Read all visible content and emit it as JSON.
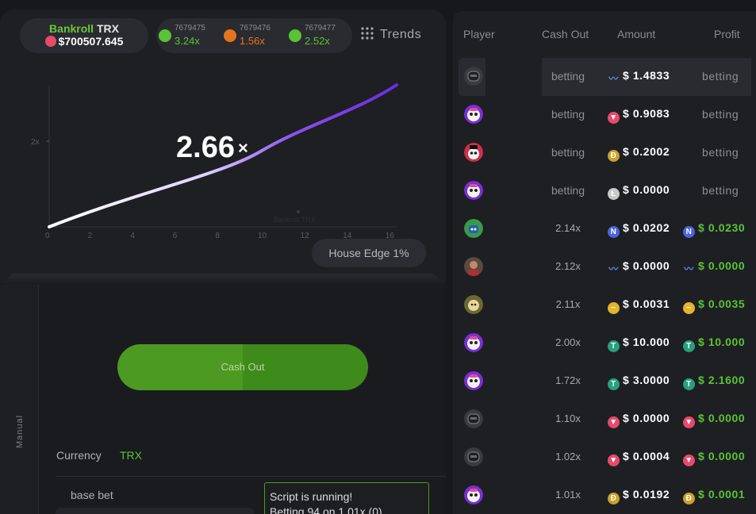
{
  "bankroll": {
    "label_prefix": "Bankroll",
    "label_currency": "TRX",
    "amount": "$700507.645"
  },
  "history": [
    {
      "id": "7679475",
      "multiplier": "3.24x",
      "color": "#59c434"
    },
    {
      "id": "7679476",
      "multiplier": "1.56x",
      "color": "#e8731e"
    },
    {
      "id": "7679477",
      "multiplier": "2.52x",
      "color": "#59c434"
    }
  ],
  "trends_label": "Trends",
  "chart": {
    "current_multiplier": "2.66",
    "multiplier_suffix": "×",
    "y_tick": "2x",
    "x_ticks": [
      "0",
      "2",
      "4",
      "6",
      "8",
      "10",
      "12",
      "14",
      "16"
    ],
    "watermark": "Bankroll TRX"
  },
  "house_edge": "House Edge 1%",
  "controls": {
    "mode_label": "Manual",
    "cashout_label": "Cash Out",
    "currency_label": "Currency",
    "currency_value": "TRX",
    "base_bet_label": "base bet",
    "script_text": "Script is running!\nBetting 94 on 1.01x (0)"
  },
  "table": {
    "headers": {
      "player": "Player",
      "cash_out": "Cash Out",
      "amount": "Amount",
      "profit": "Profit"
    },
    "rows": [
      {
        "avatar": "helmet-avatar",
        "cash_out": "betting",
        "amount": "$ 1.4833",
        "amount_icon": "wave-icon",
        "profit": "betting",
        "highlighted": true
      },
      {
        "avatar": "panda-avatar",
        "cash_out": "betting",
        "amount": "$ 0.9083",
        "amount_icon": "trx-icon",
        "profit": "betting"
      },
      {
        "avatar": "panda-hat-avatar",
        "cash_out": "betting",
        "amount": "$ 0.2002",
        "amount_icon": "doge-icon",
        "profit": "betting"
      },
      {
        "avatar": "panda-avatar",
        "cash_out": "betting",
        "amount": "$ 0.0000",
        "amount_icon": "ltc-icon",
        "profit": "betting"
      },
      {
        "avatar": "robot-avatar",
        "cash_out": "2.14x",
        "amount": "$ 0.0202",
        "amount_icon": "nano-icon",
        "profit": "$ 0.0230",
        "profit_icon": "nano-icon"
      },
      {
        "avatar": "person-avatar",
        "cash_out": "2.12x",
        "amount": "$ 0.0000",
        "amount_icon": "wave-icon",
        "profit": "$ 0.0000",
        "profit_icon": "wave-icon"
      },
      {
        "avatar": "dog-avatar",
        "cash_out": "2.11x",
        "amount": "$ 0.0031",
        "amount_icon": "tilde-icon",
        "profit": "$ 0.0035",
        "profit_icon": "tilde-icon"
      },
      {
        "avatar": "panda-avatar",
        "cash_out": "2.00x",
        "amount": "$ 10.000",
        "amount_icon": "usdt-icon",
        "profit": "$ 10.000",
        "profit_icon": "usdt-icon"
      },
      {
        "avatar": "panda-avatar",
        "cash_out": "1.72x",
        "amount": "$ 3.0000",
        "amount_icon": "usdt-icon",
        "profit": "$ 2.1600",
        "profit_icon": "usdt-icon"
      },
      {
        "avatar": "helmet-avatar",
        "cash_out": "1.10x",
        "amount": "$ 0.0000",
        "amount_icon": "trx-icon",
        "profit": "$ 0.0000",
        "profit_icon": "trx-icon"
      },
      {
        "avatar": "helmet-avatar",
        "cash_out": "1.02x",
        "amount": "$ 0.0004",
        "amount_icon": "trx-icon",
        "profit": "$ 0.0000",
        "profit_icon": "trx-icon"
      },
      {
        "avatar": "panda-avatar",
        "cash_out": "1.01x",
        "amount": "$ 0.0192",
        "amount_icon": "doge-icon",
        "profit": "$ 0.0001",
        "profit_icon": "doge-icon"
      }
    ]
  },
  "colors": {
    "green": "#59c434",
    "orange": "#e8731e",
    "trx": "#e84a6a",
    "doge": "#c9a227",
    "usdt": "#26a17b",
    "nano": "#4a63e0",
    "wave": "#5a8be8",
    "tilde": "#e2b52a",
    "ltc": "#c8c8c8"
  }
}
